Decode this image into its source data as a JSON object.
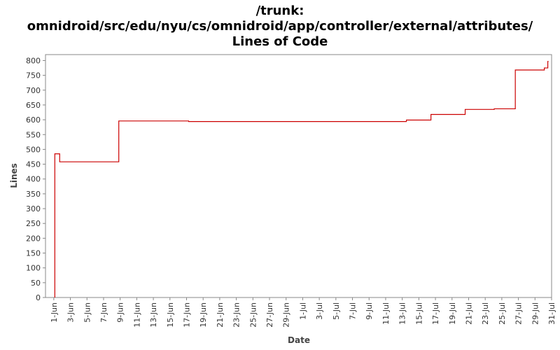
{
  "chart_data": {
    "type": "line",
    "title_lines": [
      "/trunk:",
      "omnidroid/src/edu/nyu/cs/omnidroid/app/controller/external/attributes/",
      "Lines of Code"
    ],
    "xlabel": "Date",
    "ylabel": "Lines",
    "ylim": [
      0,
      820
    ],
    "yticks": [
      0,
      50,
      100,
      150,
      200,
      250,
      300,
      350,
      400,
      450,
      500,
      550,
      600,
      650,
      700,
      750,
      800
    ],
    "x_range_dates": [
      "2009-05-31",
      "2009-07-31"
    ],
    "xtick_dates": [
      "2009-06-01",
      "2009-06-03",
      "2009-06-05",
      "2009-06-07",
      "2009-06-09",
      "2009-06-11",
      "2009-06-13",
      "2009-06-15",
      "2009-06-17",
      "2009-06-19",
      "2009-06-21",
      "2009-06-23",
      "2009-06-25",
      "2009-06-27",
      "2009-06-29",
      "2009-07-01",
      "2009-07-03",
      "2009-07-05",
      "2009-07-07",
      "2009-07-09",
      "2009-07-11",
      "2009-07-13",
      "2009-07-15",
      "2009-07-17",
      "2009-07-19",
      "2009-07-21",
      "2009-07-23",
      "2009-07-25",
      "2009-07-27",
      "2009-07-29",
      "2009-07-31"
    ],
    "xtick_labels": [
      "1-Jun",
      "3-Jun",
      "5-Jun",
      "7-Jun",
      "9-Jun",
      "11-Jun",
      "13-Jun",
      "15-Jun",
      "17-Jun",
      "19-Jun",
      "21-Jun",
      "23-Jun",
      "25-Jun",
      "27-Jun",
      "29-Jun",
      "1-Jul",
      "3-Jul",
      "5-Jul",
      "7-Jul",
      "9-Jul",
      "11-Jul",
      "13-Jul",
      "15-Jul",
      "17-Jul",
      "19-Jul",
      "21-Jul",
      "23-Jul",
      "25-Jul",
      "27-Jul",
      "29-Jul",
      "31-Jul"
    ],
    "grid": false,
    "series": [
      {
        "color": "#cc0000",
        "step": true,
        "points": [
          [
            "2009-06-01T03:00",
            0
          ],
          [
            "2009-06-01T03:00",
            485
          ],
          [
            "2009-06-01T17:00",
            458
          ],
          [
            "2009-06-08T20:00",
            596
          ],
          [
            "2009-06-17T06:00",
            594
          ],
          [
            "2009-07-13T12:00",
            599
          ],
          [
            "2009-07-16T11:00",
            618
          ],
          [
            "2009-07-20T14:00",
            635
          ],
          [
            "2009-07-24T02:00",
            637
          ],
          [
            "2009-07-26T15:00",
            768
          ],
          [
            "2009-07-30T03:00",
            775
          ],
          [
            "2009-07-30T13:00",
            797
          ]
        ],
        "end": "2009-07-30T15:00"
      }
    ]
  }
}
